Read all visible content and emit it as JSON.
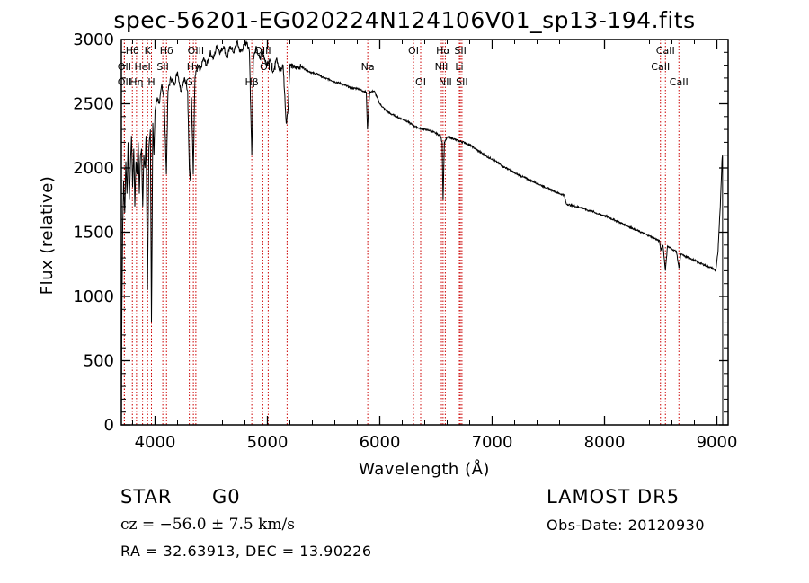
{
  "header": {
    "title": "spec-56201-EG020224N124106V01_sp13-194.fits"
  },
  "footer": {
    "class": "STAR",
    "subclass": "G0",
    "survey": "LAMOST DR5",
    "cz": "cz = −56.0 ± 7.5 km/s",
    "obs_date": "Obs-Date: 20120930",
    "coords": "RA =  32.63913, DEC =  13.90226"
  },
  "chart_data": {
    "type": "line",
    "title": "spec-56201-EG020224N124106V01_sp13-194.fits",
    "xlabel": "Wavelength (Å)",
    "ylabel": "Flux (relative)",
    "xlim": [
      3700,
      9100
    ],
    "ylim": [
      0,
      3000
    ],
    "x_ticks": [
      4000,
      5000,
      6000,
      7000,
      8000,
      9000
    ],
    "y_ticks": [
      0,
      500,
      1000,
      1500,
      2000,
      2500,
      3000
    ],
    "grid": false,
    "line_color": "#000000",
    "marker_color": "#cc0000",
    "series": [
      {
        "points": [
          [
            3700,
            0
          ],
          [
            3705,
            900
          ],
          [
            3712,
            1550
          ],
          [
            3720,
            1900
          ],
          [
            3730,
            1650
          ],
          [
            3740,
            2050
          ],
          [
            3750,
            1800
          ],
          [
            3760,
            2200
          ],
          [
            3770,
            1750
          ],
          [
            3780,
            2000
          ],
          [
            3790,
            2250
          ],
          [
            3800,
            1850
          ],
          [
            3810,
            2150
          ],
          [
            3820,
            1700
          ],
          [
            3830,
            2050
          ],
          [
            3840,
            1950
          ],
          [
            3850,
            2200
          ],
          [
            3860,
            1800
          ],
          [
            3870,
            2100
          ],
          [
            3880,
            2150
          ],
          [
            3890,
            1700
          ],
          [
            3900,
            2100
          ],
          [
            3910,
            2000
          ],
          [
            3920,
            2250
          ],
          [
            3933,
            1050
          ],
          [
            3945,
            2150
          ],
          [
            3958,
            2300
          ],
          [
            3968,
            800
          ],
          [
            3980,
            2350
          ],
          [
            3990,
            2100
          ],
          [
            4000,
            2450
          ],
          [
            4020,
            2550
          ],
          [
            4040,
            2500
          ],
          [
            4060,
            2650
          ],
          [
            4080,
            2550
          ],
          [
            4101,
            1950
          ],
          [
            4115,
            2600
          ],
          [
            4140,
            2700
          ],
          [
            4170,
            2650
          ],
          [
            4200,
            2750
          ],
          [
            4230,
            2600
          ],
          [
            4260,
            2700
          ],
          [
            4290,
            2600
          ],
          [
            4305,
            2000
          ],
          [
            4315,
            1900
          ],
          [
            4325,
            2550
          ],
          [
            4340,
            1950
          ],
          [
            4355,
            2700
          ],
          [
            4380,
            2800
          ],
          [
            4400,
            2750
          ],
          [
            4430,
            2850
          ],
          [
            4460,
            2800
          ],
          [
            4490,
            2900
          ],
          [
            4520,
            2850
          ],
          [
            4550,
            2950
          ],
          [
            4580,
            2900
          ],
          [
            4610,
            2950
          ],
          [
            4640,
            2850
          ],
          [
            4670,
            2950
          ],
          [
            4700,
            2900
          ],
          [
            4730,
            2980
          ],
          [
            4760,
            2900
          ],
          [
            4790,
            2950
          ],
          [
            4820,
            2980
          ],
          [
            4840,
            2900
          ],
          [
            4861,
            2100
          ],
          [
            4875,
            2850
          ],
          [
            4900,
            2950
          ],
          [
            4930,
            2850
          ],
          [
            4960,
            2900
          ],
          [
            4990,
            2800
          ],
          [
            5020,
            2850
          ],
          [
            5050,
            2750
          ],
          [
            5080,
            2850
          ],
          [
            5110,
            2750
          ],
          [
            5140,
            2800
          ],
          [
            5167,
            2350
          ],
          [
            5183,
            2450
          ],
          [
            5200,
            2800
          ],
          [
            5250,
            2780
          ],
          [
            5300,
            2790
          ],
          [
            5350,
            2760
          ],
          [
            5400,
            2740
          ],
          [
            5450,
            2730
          ],
          [
            5500,
            2700
          ],
          [
            5550,
            2690
          ],
          [
            5600,
            2670
          ],
          [
            5650,
            2660
          ],
          [
            5700,
            2640
          ],
          [
            5750,
            2620
          ],
          [
            5800,
            2620
          ],
          [
            5850,
            2600
          ],
          [
            5880,
            2590
          ],
          [
            5890,
            2300
          ],
          [
            5897,
            2400
          ],
          [
            5910,
            2590
          ],
          [
            5950,
            2600
          ],
          [
            6000,
            2500
          ],
          [
            6050,
            2450
          ],
          [
            6100,
            2420
          ],
          [
            6150,
            2400
          ],
          [
            6200,
            2380
          ],
          [
            6250,
            2360
          ],
          [
            6300,
            2330
          ],
          [
            6350,
            2310
          ],
          [
            6400,
            2300
          ],
          [
            6450,
            2290
          ],
          [
            6500,
            2270
          ],
          [
            6540,
            2250
          ],
          [
            6555,
            2200
          ],
          [
            6563,
            1750
          ],
          [
            6575,
            2200
          ],
          [
            6600,
            2240
          ],
          [
            6650,
            2230
          ],
          [
            6700,
            2210
          ],
          [
            6750,
            2200
          ],
          [
            6800,
            2180
          ],
          [
            6850,
            2150
          ],
          [
            6900,
            2120
          ],
          [
            6950,
            2090
          ],
          [
            7000,
            2070
          ],
          [
            7050,
            2040
          ],
          [
            7100,
            2010
          ],
          [
            7150,
            1990
          ],
          [
            7200,
            1960
          ],
          [
            7250,
            1940
          ],
          [
            7300,
            1920
          ],
          [
            7350,
            1900
          ],
          [
            7400,
            1880
          ],
          [
            7450,
            1860
          ],
          [
            7500,
            1840
          ],
          [
            7550,
            1820
          ],
          [
            7600,
            1800
          ],
          [
            7640,
            1790
          ],
          [
            7660,
            1720
          ],
          [
            7700,
            1710
          ],
          [
            7750,
            1700
          ],
          [
            7800,
            1690
          ],
          [
            7850,
            1670
          ],
          [
            7900,
            1660
          ],
          [
            7950,
            1640
          ],
          [
            8000,
            1630
          ],
          [
            8050,
            1610
          ],
          [
            8100,
            1590
          ],
          [
            8150,
            1570
          ],
          [
            8200,
            1550
          ],
          [
            8250,
            1530
          ],
          [
            8300,
            1510
          ],
          [
            8350,
            1490
          ],
          [
            8400,
            1470
          ],
          [
            8450,
            1450
          ],
          [
            8490,
            1430
          ],
          [
            8500,
            1360
          ],
          [
            8520,
            1400
          ],
          [
            8542,
            1200
          ],
          [
            8560,
            1390
          ],
          [
            8600,
            1370
          ],
          [
            8640,
            1350
          ],
          [
            8662,
            1220
          ],
          [
            8680,
            1330
          ],
          [
            8720,
            1310
          ],
          [
            8760,
            1300
          ],
          [
            8800,
            1280
          ],
          [
            8850,
            1260
          ],
          [
            8900,
            1240
          ],
          [
            8960,
            1220
          ],
          [
            8990,
            1200
          ],
          [
            9010,
            1350
          ],
          [
            9030,
            1700
          ],
          [
            9045,
            2050
          ],
          [
            9050,
            2100
          ],
          [
            9052,
            0
          ]
        ]
      }
    ],
    "lines": [
      {
        "label": "Hθ",
        "x": 3798,
        "row": 0
      },
      {
        "label": "OII",
        "x": 3727,
        "row": 1
      },
      {
        "label": "OII",
        "x": 3727,
        "row": 2
      },
      {
        "label": "K",
        "x": 3934,
        "row": 0
      },
      {
        "label": "HeI",
        "x": 3889,
        "row": 1
      },
      {
        "label": "Hη",
        "x": 3835,
        "row": 2
      },
      {
        "label": "Hδ",
        "x": 4102,
        "row": 0
      },
      {
        "label": "SII",
        "x": 4069,
        "row": 1
      },
      {
        "label": "H",
        "x": 3968,
        "row": 2
      },
      {
        "label": "OIII",
        "x": 4363,
        "row": 0
      },
      {
        "label": "Hγ",
        "x": 4341,
        "row": 1
      },
      {
        "label": "G",
        "x": 4305,
        "row": 2
      },
      {
        "label": "OIII",
        "x": 4959,
        "row": 0
      },
      {
        "label": "OIII",
        "x": 5007,
        "row": 1
      },
      {
        "label": "Hβ",
        "x": 4861,
        "row": 2
      },
      {
        "label": "Na",
        "x": 5893,
        "row": 1
      },
      {
        "label": "OI",
        "x": 6300,
        "row": 0
      },
      {
        "label": "OI",
        "x": 6364,
        "row": 2
      },
      {
        "label": "Hα",
        "x": 6563,
        "row": 0
      },
      {
        "label": "NII",
        "x": 6548,
        "row": 1
      },
      {
        "label": "NII",
        "x": 6583,
        "row": 2
      },
      {
        "label": "SII",
        "x": 6717,
        "row": 0
      },
      {
        "label": "Li",
        "x": 6708,
        "row": 1
      },
      {
        "label": "SII",
        "x": 6731,
        "row": 2
      },
      {
        "label": "CaII",
        "x": 8542,
        "row": 0
      },
      {
        "label": "CaII",
        "x": 8498,
        "row": 1
      },
      {
        "label": "CaII",
        "x": 8662,
        "row": 2
      },
      {
        "label": "",
        "x": 5175,
        "row": 3
      }
    ]
  }
}
